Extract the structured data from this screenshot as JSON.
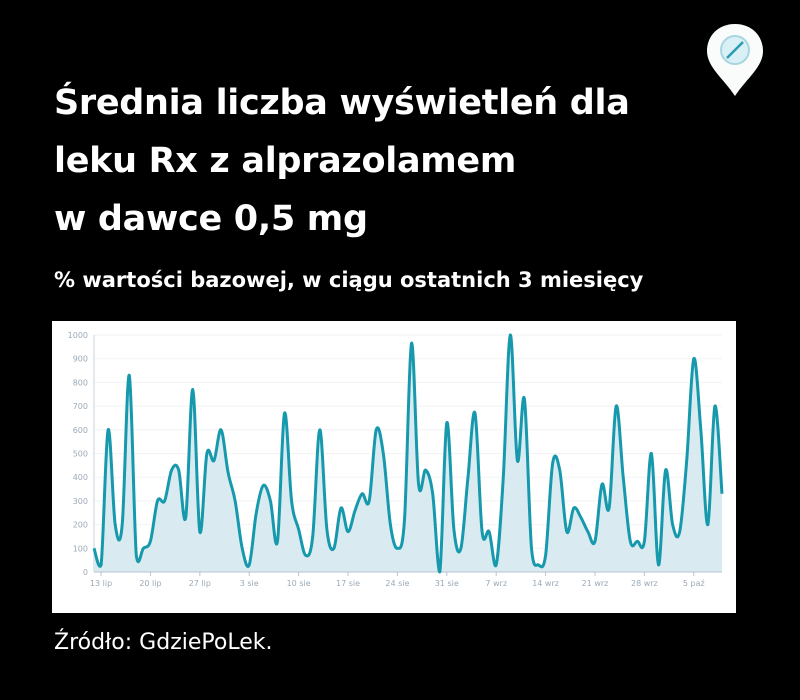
{
  "title_lines": [
    "Średnia liczba wyświetleń dla",
    "leku Rx z alprazolamem",
    "w dawce 0,5 mg"
  ],
  "subtitle": "% wartości bazowej, w ciągu ostatnich 3 miesięcy",
  "source": "Źródło: GdziePoLek.",
  "logo": {
    "icon": "map-pin-pill-icon"
  },
  "colors": {
    "background": "#000000",
    "line": "#1799ad",
    "fill": "#d5e9ef",
    "tick_text": "#9aa9b8"
  },
  "chart_data": {
    "type": "area",
    "title": "",
    "xlabel": "",
    "ylabel": "",
    "ylim": [
      0,
      1000
    ],
    "yticks": [
      0,
      100,
      200,
      300,
      400,
      500,
      600,
      700,
      800,
      900,
      1000
    ],
    "grid": true,
    "xticks": [
      {
        "x": "07-13",
        "label": "13 lip"
      },
      {
        "x": "07-20",
        "label": "20 lip"
      },
      {
        "x": "07-27",
        "label": "27 lip"
      },
      {
        "x": "08-03",
        "label": "3 sie"
      },
      {
        "x": "08-10",
        "label": "10 sie"
      },
      {
        "x": "08-17",
        "label": "17 sie"
      },
      {
        "x": "08-24",
        "label": "24 sie"
      },
      {
        "x": "08-31",
        "label": "31 sie"
      },
      {
        "x": "09-07",
        "label": "7 wrz"
      },
      {
        "x": "09-14",
        "label": "14 wrz"
      },
      {
        "x": "09-21",
        "label": "21 wrz"
      },
      {
        "x": "09-28",
        "label": "28 wrz"
      },
      {
        "x": "10-05",
        "label": "5 paź"
      }
    ],
    "x": [
      "07-12",
      "07-13",
      "07-14",
      "07-15",
      "07-16",
      "07-17",
      "07-18",
      "07-19",
      "07-20",
      "07-21",
      "07-22",
      "07-23",
      "07-24",
      "07-25",
      "07-26",
      "07-27",
      "07-28",
      "07-29",
      "07-30",
      "07-31",
      "08-01",
      "08-02",
      "08-03",
      "08-04",
      "08-05",
      "08-06",
      "08-07",
      "08-08",
      "08-09",
      "08-10",
      "08-11",
      "08-12",
      "08-13",
      "08-14",
      "08-15",
      "08-16",
      "08-17",
      "08-18",
      "08-19",
      "08-20",
      "08-21",
      "08-22",
      "08-23",
      "08-24",
      "08-25",
      "08-26",
      "08-27",
      "08-28",
      "08-29",
      "08-30",
      "08-31",
      "09-01",
      "09-02",
      "09-03",
      "09-04",
      "09-05",
      "09-06",
      "09-07",
      "09-08",
      "09-09",
      "09-10",
      "09-11",
      "09-12",
      "09-13",
      "09-14",
      "09-15",
      "09-16",
      "09-17",
      "09-18",
      "09-19",
      "09-20",
      "09-21",
      "09-22",
      "09-23",
      "09-24",
      "09-25",
      "09-26",
      "09-27",
      "09-28",
      "09-29",
      "09-30",
      "10-01",
      "10-02",
      "10-03",
      "10-04",
      "10-05",
      "10-06",
      "10-07",
      "10-08",
      "10-09"
    ],
    "values": [
      100,
      30,
      600,
      200,
      200,
      830,
      70,
      100,
      130,
      300,
      300,
      430,
      430,
      230,
      770,
      170,
      500,
      470,
      600,
      420,
      300,
      100,
      30,
      250,
      365,
      300,
      130,
      670,
      300,
      180,
      70,
      150,
      600,
      180,
      100,
      270,
      170,
      260,
      330,
      300,
      600,
      500,
      200,
      100,
      220,
      965,
      370,
      430,
      330,
      0,
      630,
      180,
      100,
      400,
      670,
      170,
      170,
      30,
      400,
      1000,
      470,
      730,
      100,
      30,
      70,
      460,
      430,
      170,
      270,
      230,
      170,
      130,
      370,
      270,
      700,
      400,
      130,
      130,
      130,
      500,
      30,
      430,
      200,
      170,
      470,
      900,
      600,
      200,
      700,
      330
    ]
  }
}
